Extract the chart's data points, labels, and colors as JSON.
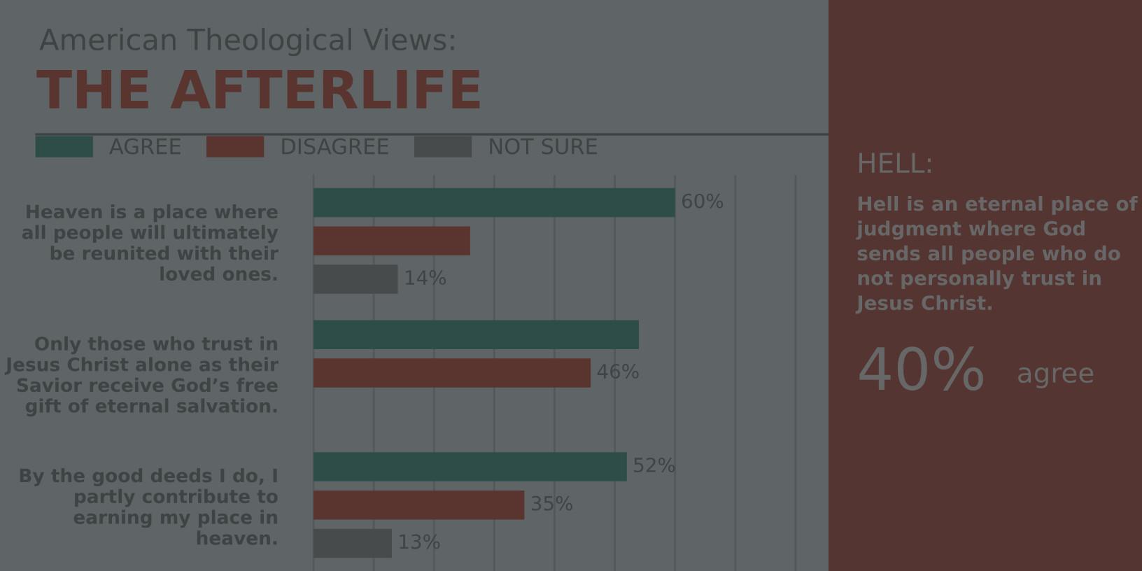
{
  "chart_data": [
    {
      "type": "bar",
      "orientation": "horizontal",
      "subtitle": "American Theological Views:",
      "title": "THE AFTERLIFE",
      "categories": [
        "Heaven is a place where all people will ultimately be reunited with their loved ones.",
        "Only those who trust in Jesus Christ alone as their Savior receive God’s free gift of eternal salvation.",
        "By the good deeds I do, I partly contribute to earning my place in heaven."
      ],
      "series": [
        {
          "name": "AGREE",
          "color": "#2f4d48",
          "values": [
            60,
            54,
            52
          ],
          "value_labels": [
            "60%",
            null,
            "52%"
          ]
        },
        {
          "name": "DISAGREE",
          "color": "#5a3530",
          "values": [
            26,
            46,
            35
          ],
          "value_labels": [
            null,
            "46%",
            "35%"
          ]
        },
        {
          "name": "NOT SURE",
          "color": "#474b4c",
          "values": [
            14,
            null,
            13
          ],
          "value_labels": [
            "14%",
            null,
            "13%"
          ]
        }
      ],
      "xlim": [
        0,
        85
      ],
      "xticks": [
        {
          "value": 0,
          "label": null
        },
        {
          "value": 10,
          "label": null
        },
        {
          "value": 20,
          "label": null
        },
        {
          "value": 30,
          "label": null
        },
        {
          "value": 40,
          "label": null
        },
        {
          "value": 50,
          "label": null
        },
        {
          "value": 60,
          "label": null
        },
        {
          "value": 70,
          "label": null
        },
        {
          "value": 80,
          "label": null
        }
      ],
      "grid": "x",
      "legend": "top left",
      "tick_labels": "y"
    },
    {
      "type": "other",
      "title": "HELL:",
      "annotations": [
        "Hell is an eternal place of judgment where God sends all people who do not personally trust in Jesus Christ.",
        "40%",
        "agree"
      ]
    }
  ]
}
